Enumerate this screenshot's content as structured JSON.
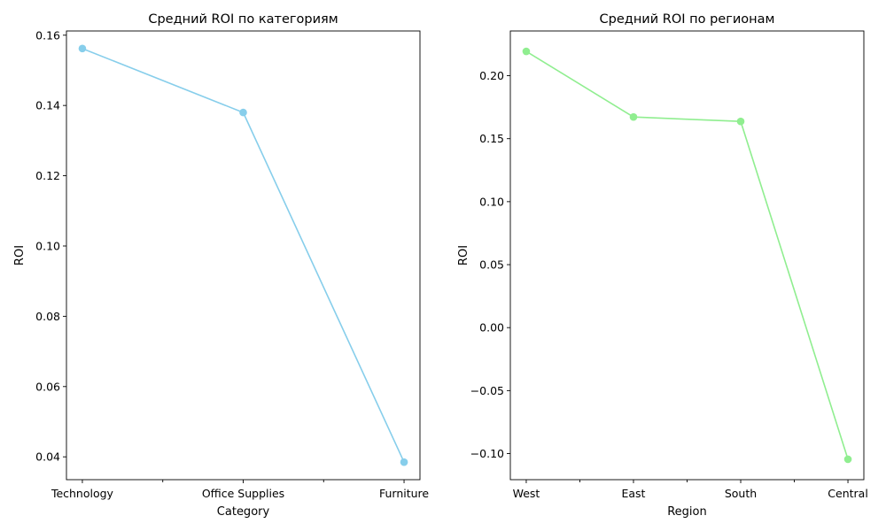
{
  "chart_data": [
    {
      "type": "line",
      "title": "Средний ROI по категориям",
      "xlabel": "Category",
      "ylabel": "ROI",
      "categories": [
        "Technology",
        "Office Supplies",
        "Furniture"
      ],
      "series": [
        {
          "values": [
            0.1562,
            0.138,
            0.0385
          ],
          "color": "#87CEEB"
        }
      ],
      "ylim": [
        0.0335,
        0.1612
      ],
      "yticks": [
        "0.04",
        "0.06",
        "0.08",
        "0.10",
        "0.12",
        "0.14",
        "0.16"
      ],
      "ytick_values": [
        0.04,
        0.06,
        0.08,
        0.1,
        0.12,
        0.14,
        0.16
      ],
      "markers": true,
      "grid": false
    },
    {
      "type": "line",
      "title": "Средний ROI по регионам",
      "xlabel": "Region",
      "ylabel": "ROI",
      "categories": [
        "West",
        "East",
        "South",
        "Central"
      ],
      "series": [
        {
          "values": [
            0.2193,
            0.1672,
            0.1637,
            -0.1045
          ],
          "color": "#90EE90"
        }
      ],
      "ylim": [
        -0.1207,
        0.2355
      ],
      "yticks": [
        "−0.10",
        "−0.05",
        "0.00",
        "0.05",
        "0.10",
        "0.15",
        "0.20"
      ],
      "ytick_values": [
        -0.1,
        -0.05,
        0.0,
        0.05,
        0.1,
        0.15,
        0.2
      ],
      "markers": true,
      "grid": false
    }
  ]
}
